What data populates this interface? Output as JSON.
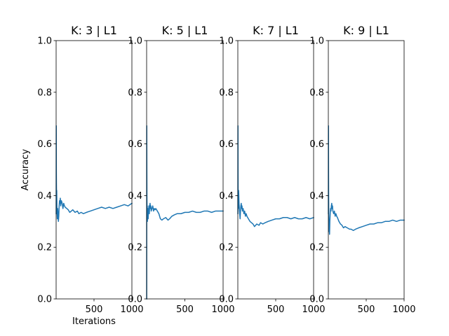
{
  "chart_data": [
    {
      "type": "line",
      "title": "K: 3 | L1",
      "xlabel": "Iterations",
      "ylabel": "Accuracy",
      "xlim": [
        0,
        1000
      ],
      "ylim": [
        0,
        1
      ],
      "xticks": [
        500,
        1000
      ],
      "yticks": [
        0.0,
        0.2,
        0.4,
        0.6,
        0.8,
        1.0
      ],
      "xtick_labels": [
        "500",
        "1000"
      ],
      "ytick_labels": [
        "0.0",
        "0.2",
        "0.4",
        "0.6",
        "0.8",
        "1.0"
      ],
      "grid": false,
      "color": "#1f77b4",
      "series": [
        {
          "x": [
            1,
            2,
            3,
            4,
            6,
            8,
            10,
            13,
            16,
            20,
            25,
            30,
            35,
            40,
            45,
            50,
            55,
            60,
            70,
            80,
            90,
            100,
            110,
            120,
            140,
            160,
            180,
            200,
            220,
            250,
            280,
            300,
            330,
            360,
            400,
            450,
            500,
            550,
            600,
            650,
            700,
            750,
            800,
            850,
            900,
            950,
            1000
          ],
          "y": [
            0.33,
            0.67,
            0.5,
            0.45,
            0.38,
            0.42,
            0.36,
            0.33,
            0.31,
            0.35,
            0.33,
            0.3,
            0.32,
            0.36,
            0.38,
            0.37,
            0.39,
            0.36,
            0.38,
            0.37,
            0.35,
            0.37,
            0.36,
            0.355,
            0.35,
            0.345,
            0.335,
            0.34,
            0.345,
            0.335,
            0.34,
            0.33,
            0.335,
            0.33,
            0.335,
            0.34,
            0.345,
            0.35,
            0.355,
            0.35,
            0.355,
            0.35,
            0.355,
            0.36,
            0.365,
            0.36,
            0.37
          ]
        }
      ]
    },
    {
      "type": "line",
      "title": "K: 5 | L1",
      "xlabel": "",
      "ylabel": "",
      "xlim": [
        0,
        1000
      ],
      "ylim": [
        0,
        1
      ],
      "xticks": [
        500,
        1000
      ],
      "yticks": [
        0.0,
        0.2,
        0.4,
        0.6,
        0.8,
        1.0
      ],
      "xtick_labels": [
        "500",
        "1000"
      ],
      "ytick_labels": [
        "0.0",
        "0.2",
        "0.4",
        "0.6",
        "0.8",
        "1.0"
      ],
      "grid": false,
      "color": "#1f77b4",
      "series": [
        {
          "x": [
            1,
            2,
            3,
            4,
            6,
            8,
            10,
            13,
            16,
            20,
            25,
            30,
            35,
            40,
            45,
            50,
            55,
            60,
            70,
            80,
            90,
            100,
            110,
            120,
            140,
            160,
            180,
            200,
            220,
            250,
            280,
            300,
            330,
            360,
            400,
            450,
            500,
            550,
            600,
            650,
            700,
            750,
            800,
            850,
            900,
            950,
            1000
          ],
          "y": [
            0.0,
            0.67,
            0.5,
            0.4,
            0.33,
            0.36,
            0.3,
            0.33,
            0.35,
            0.31,
            0.34,
            0.36,
            0.33,
            0.36,
            0.37,
            0.35,
            0.36,
            0.34,
            0.35,
            0.36,
            0.34,
            0.35,
            0.345,
            0.35,
            0.34,
            0.33,
            0.31,
            0.305,
            0.31,
            0.315,
            0.305,
            0.31,
            0.32,
            0.325,
            0.33,
            0.33,
            0.335,
            0.335,
            0.34,
            0.335,
            0.335,
            0.34,
            0.34,
            0.335,
            0.34,
            0.34,
            0.34
          ]
        }
      ]
    },
    {
      "type": "line",
      "title": "K: 7 | L1",
      "xlabel": "",
      "ylabel": "",
      "xlim": [
        0,
        1000
      ],
      "ylim": [
        0,
        1
      ],
      "xticks": [
        500,
        1000
      ],
      "yticks": [
        0.0,
        0.2,
        0.4,
        0.6,
        0.8,
        1.0
      ],
      "xtick_labels": [
        "500",
        "1000"
      ],
      "ytick_labels": [
        "0.0",
        "0.2",
        "0.4",
        "0.6",
        "0.8",
        "1.0"
      ],
      "grid": false,
      "color": "#1f77b4",
      "series": [
        {
          "x": [
            1,
            2,
            3,
            4,
            6,
            8,
            10,
            13,
            16,
            20,
            25,
            30,
            35,
            40,
            45,
            50,
            55,
            60,
            70,
            80,
            90,
            100,
            110,
            120,
            140,
            160,
            180,
            200,
            220,
            250,
            280,
            300,
            330,
            360,
            400,
            450,
            500,
            550,
            600,
            650,
            700,
            750,
            800,
            850,
            900,
            950,
            1000
          ],
          "y": [
            0.33,
            0.67,
            0.5,
            0.4,
            0.35,
            0.38,
            0.42,
            0.4,
            0.37,
            0.35,
            0.33,
            0.31,
            0.34,
            0.36,
            0.37,
            0.35,
            0.36,
            0.34,
            0.35,
            0.33,
            0.34,
            0.32,
            0.33,
            0.32,
            0.31,
            0.3,
            0.295,
            0.29,
            0.28,
            0.29,
            0.285,
            0.295,
            0.29,
            0.295,
            0.3,
            0.305,
            0.31,
            0.31,
            0.315,
            0.315,
            0.31,
            0.315,
            0.31,
            0.31,
            0.315,
            0.31,
            0.315
          ]
        }
      ]
    },
    {
      "type": "line",
      "title": "K: 9 | L1",
      "xlabel": "",
      "ylabel": "",
      "xlim": [
        0,
        1000
      ],
      "ylim": [
        0,
        1
      ],
      "xticks": [
        500,
        1000
      ],
      "yticks": [
        0.0,
        0.2,
        0.4,
        0.6,
        0.8,
        1.0
      ],
      "xtick_labels": [
        "500",
        "1000"
      ],
      "ytick_labels": [
        "0.0",
        "0.2",
        "0.4",
        "0.6",
        "0.8",
        "1.0"
      ],
      "grid": false,
      "color": "#1f77b4",
      "series": [
        {
          "x": [
            1,
            2,
            3,
            4,
            6,
            8,
            10,
            13,
            16,
            20,
            25,
            30,
            35,
            40,
            45,
            50,
            55,
            60,
            70,
            80,
            90,
            100,
            110,
            120,
            140,
            160,
            180,
            200,
            220,
            250,
            280,
            300,
            330,
            360,
            400,
            450,
            500,
            550,
            600,
            650,
            700,
            750,
            800,
            850,
            900,
            950,
            1000
          ],
          "y": [
            0.33,
            0.67,
            0.5,
            0.4,
            0.33,
            0.3,
            0.26,
            0.28,
            0.25,
            0.3,
            0.33,
            0.35,
            0.34,
            0.36,
            0.37,
            0.35,
            0.36,
            0.34,
            0.33,
            0.34,
            0.32,
            0.33,
            0.32,
            0.315,
            0.3,
            0.29,
            0.285,
            0.275,
            0.28,
            0.275,
            0.27,
            0.27,
            0.265,
            0.27,
            0.275,
            0.28,
            0.285,
            0.29,
            0.29,
            0.295,
            0.295,
            0.3,
            0.3,
            0.305,
            0.3,
            0.305,
            0.305
          ]
        }
      ]
    }
  ]
}
